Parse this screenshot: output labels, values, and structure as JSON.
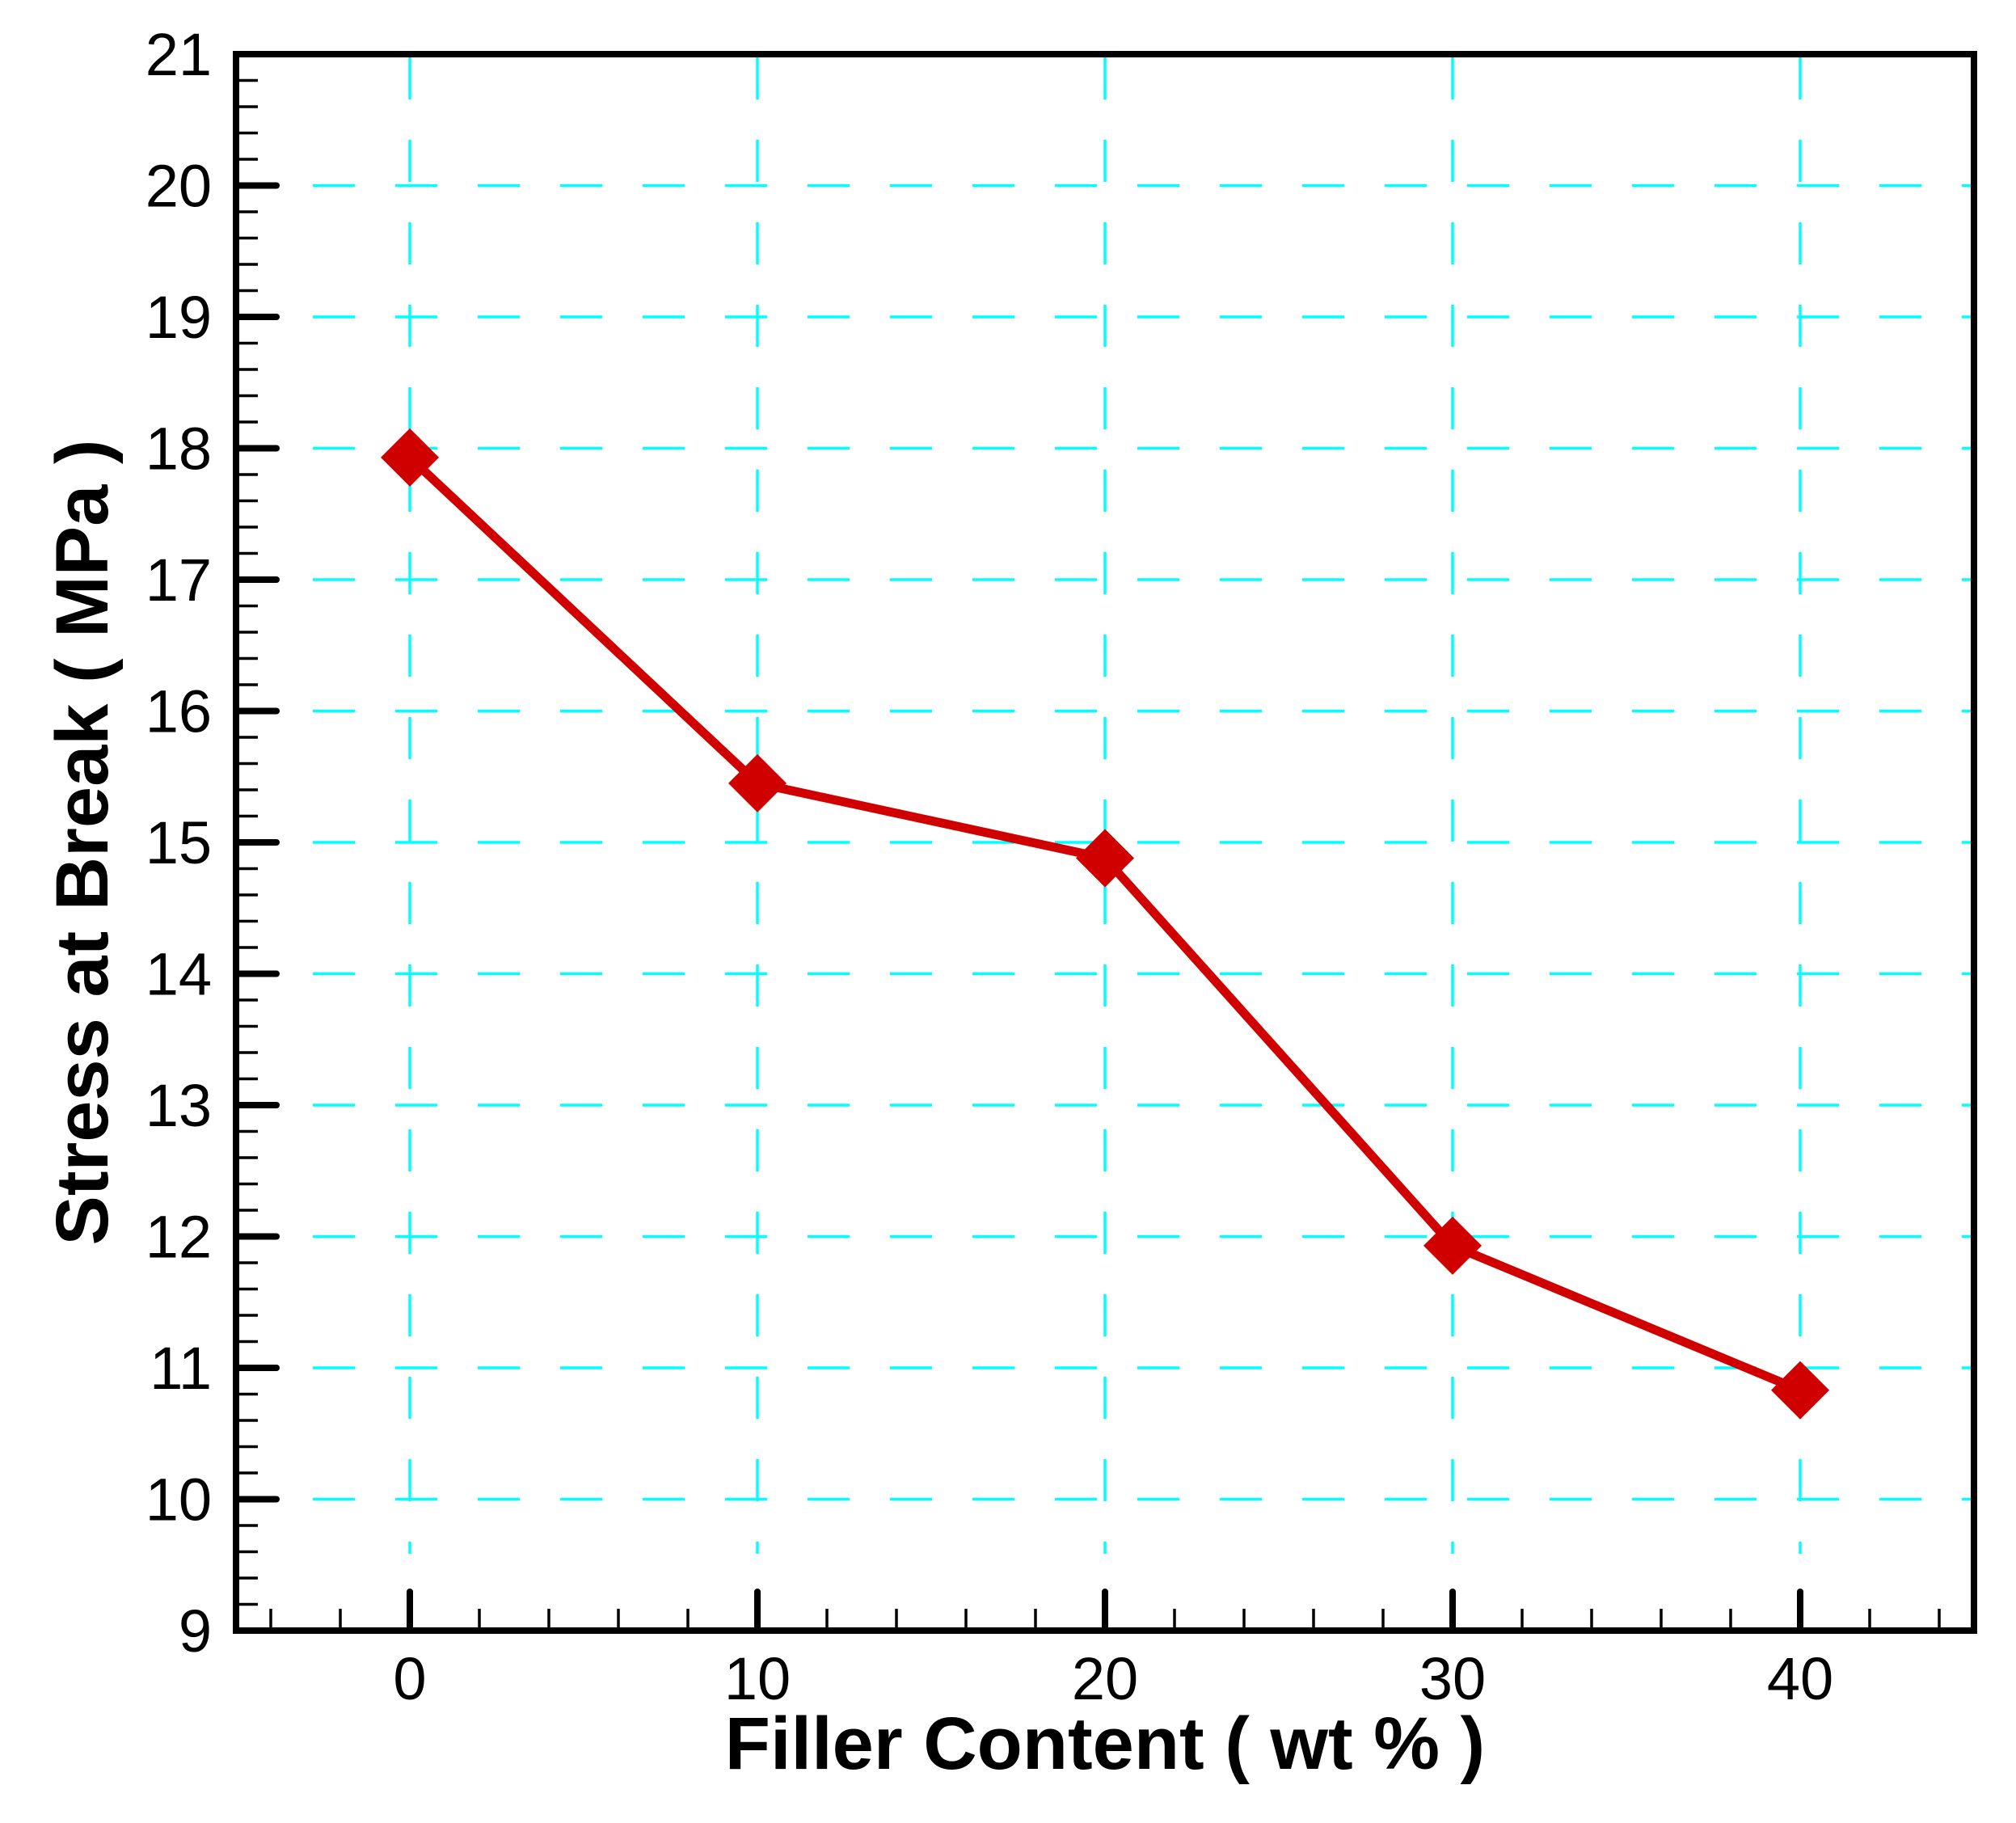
{
  "chart_data": {
    "type": "line",
    "title": "",
    "xlabel": "Filler Content ( wt % )",
    "ylabel": "Stress at Break ( MPa )",
    "xlim": [
      -5,
      45
    ],
    "ylim": [
      9,
      21
    ],
    "x_ticks": [
      0,
      10,
      20,
      30,
      40
    ],
    "y_ticks": [
      9,
      10,
      11,
      12,
      13,
      14,
      15,
      16,
      17,
      18,
      19,
      20,
      21
    ],
    "x_minor_step": 2,
    "y_minor_step": 0.2,
    "grid": true,
    "legend": null,
    "x": [
      0,
      10,
      20,
      30,
      40
    ],
    "series": [
      {
        "name": "Stress at Break",
        "values": [
          17.93,
          15.45,
          14.88,
          11.93,
          10.83
        ],
        "marker": "diamond",
        "color": "#D00000"
      }
    ]
  },
  "style": {
    "grid_color": "#00FFFF",
    "axis_color": "#000000",
    "line_color": "#D00000"
  }
}
